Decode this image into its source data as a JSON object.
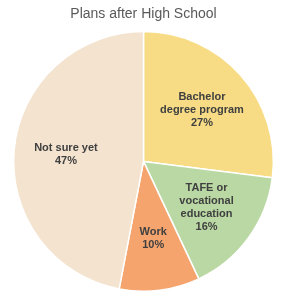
{
  "chart_data": {
    "type": "pie",
    "title": "Plans after High School",
    "categories": [
      "Bachelor degree program",
      "TAFE or vocational education",
      "Work",
      "Not sure yet"
    ],
    "values": [
      27,
      16,
      10,
      47
    ],
    "value_labels": [
      "27%",
      "16%",
      "10%",
      "47%"
    ],
    "colors": [
      "#f7dc85",
      "#b9d8a3",
      "#f4a46c",
      "#f3e3cf"
    ],
    "data_labels": true
  }
}
